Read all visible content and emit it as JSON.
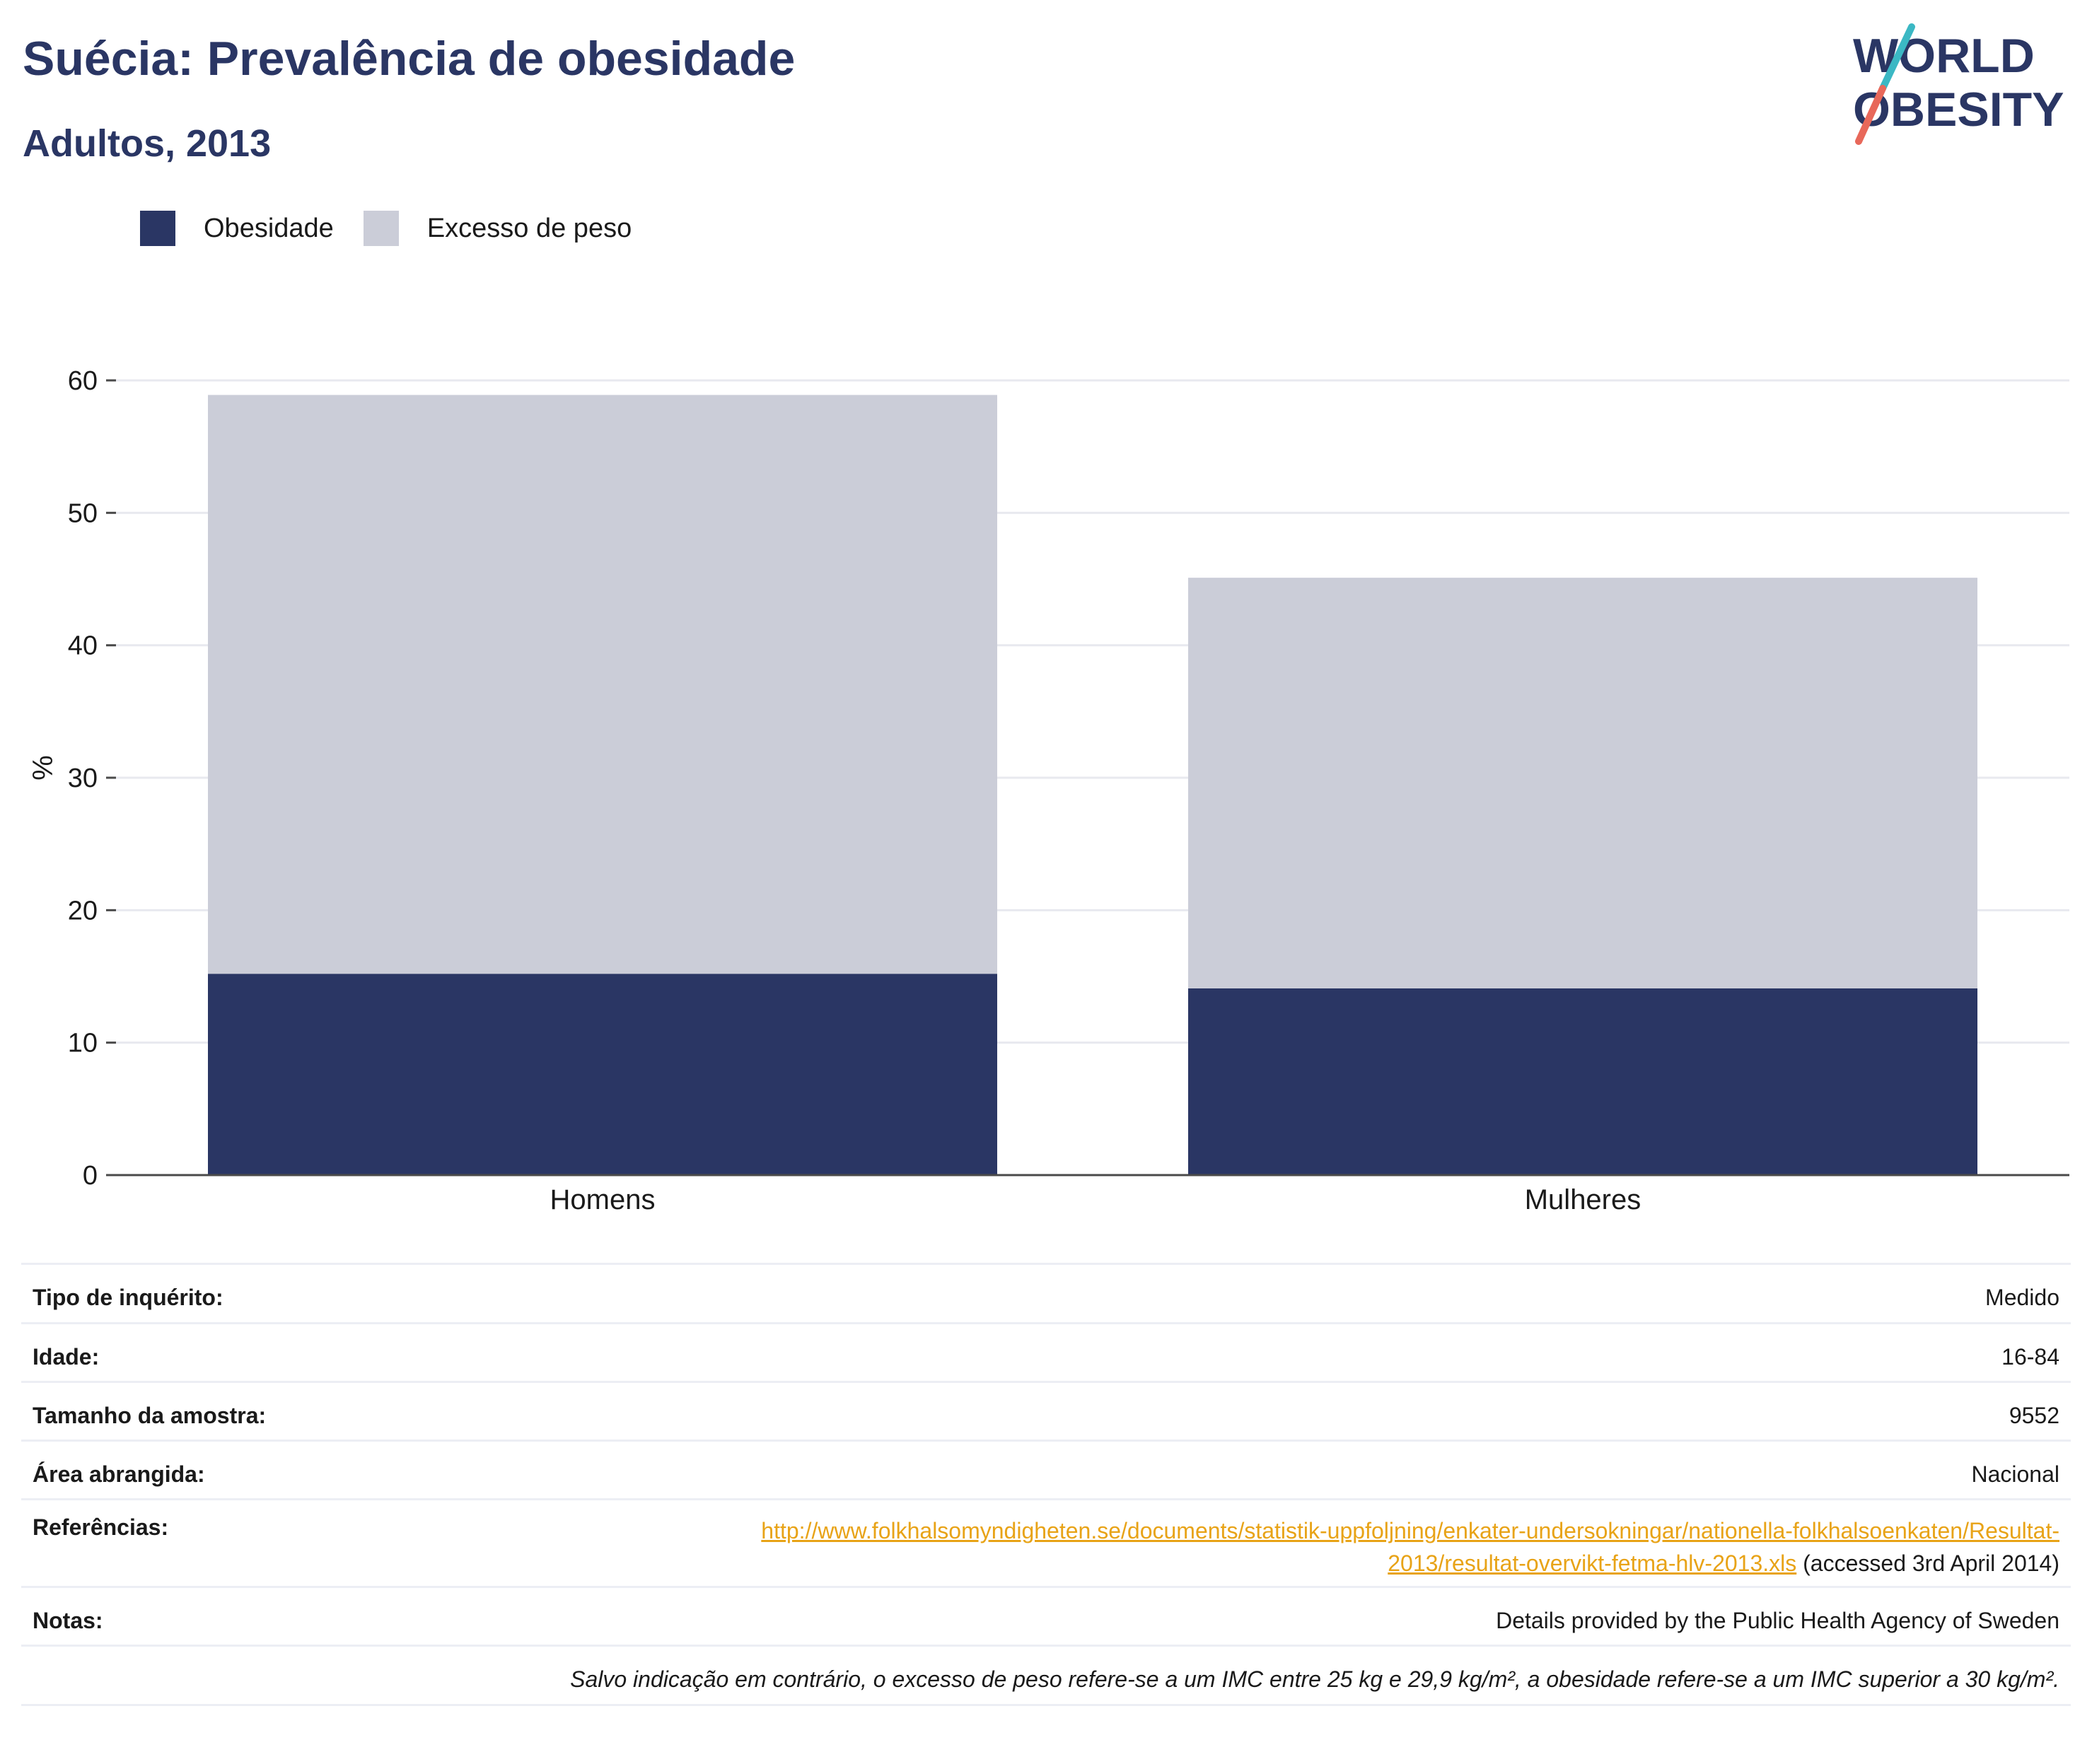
{
  "header": {
    "title": "Suécia: Prevalência de obesidade",
    "subtitle": "Adultos, 2013"
  },
  "logo": {
    "line1": "WORLD",
    "line2": "OBESITY",
    "icon": "world-obesity-logo"
  },
  "colors": {
    "obesity": "#2a3664",
    "overweight": "#cbcdd8",
    "accent": "#e8a317",
    "logo_teal": "#3bb8c4",
    "logo_coral": "#e8685a"
  },
  "legend": {
    "obesity_label": "Obesidade",
    "overweight_label": "Excesso de peso"
  },
  "chart_data": {
    "type": "bar",
    "stacked": true,
    "categories": [
      "Homens",
      "Mulheres"
    ],
    "series": [
      {
        "name": "Obesidade",
        "values": [
          15.2,
          14.1
        ]
      },
      {
        "name": "Excesso de peso",
        "values": [
          43.7,
          31.0
        ]
      }
    ],
    "totals": [
      58.9,
      45.1
    ],
    "ylabel": "%",
    "ylim": [
      0,
      60
    ],
    "yticks": [
      0,
      10,
      20,
      30,
      40,
      50,
      60
    ],
    "grid": true,
    "legend_position": "top-left"
  },
  "info": {
    "survey_type": {
      "label": "Tipo de inquérito:",
      "value": "Medido"
    },
    "age": {
      "label": "Idade:",
      "value": "16-84"
    },
    "sample_size": {
      "label": "Tamanho da amostra:",
      "value": "9552"
    },
    "area": {
      "label": "Área abrangida:",
      "value": "Nacional"
    },
    "references": {
      "label": "Referências:",
      "link_line1": "http://www.folkhalsomyndigheten.se/documents/statistik-uppfoljning/enkater-undersokningar/nationella-folkhalsoenkaten/Resultat-",
      "link_line2": "2013/resultat-overvikt-fetma-hlv-2013.xls",
      "accessed": " (accessed 3rd April 2014)"
    },
    "notes": {
      "label": "Notas:",
      "value": "Details provided by the Public Health Agency of Sweden"
    },
    "footnote": "Salvo indicação em contrário, o excesso de peso refere-se a um IMC entre 25 kg e 29,9 kg/m², a obesidade refere-se a um IMC superior a 30 kg/m²."
  }
}
